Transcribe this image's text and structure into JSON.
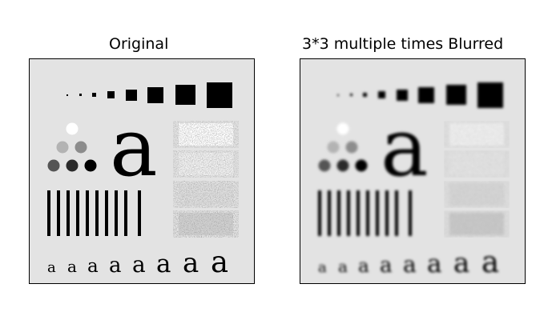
{
  "figure": {
    "panels": [
      {
        "title": "Original"
      },
      {
        "title": "3*3 multiple times Blurred"
      }
    ],
    "test_pattern": {
      "letter": "a",
      "colors": {
        "background": "#e3e3e3",
        "ink": "#000000",
        "circle_white": "#ffffff",
        "circle_light": "#b3b3b3",
        "circle_mid": "#8c8c8c",
        "circle_dark": "#555555"
      }
    }
  }
}
